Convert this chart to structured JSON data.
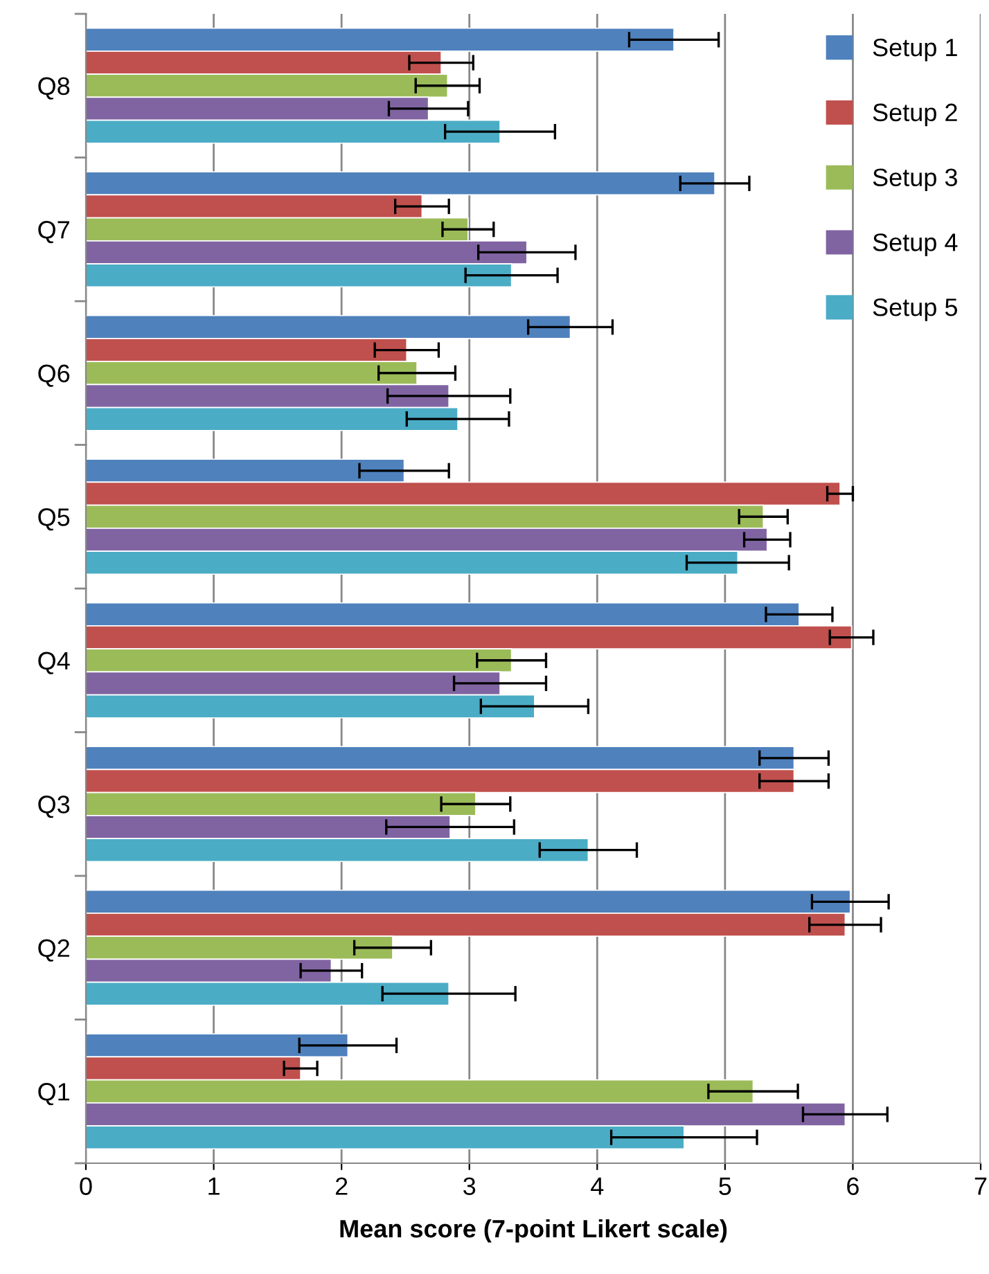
{
  "chart_data": {
    "type": "bar",
    "orientation": "horizontal",
    "xlabel": "Mean score (7-point Likert scale)",
    "categories": [
      "Q8",
      "Q7",
      "Q6",
      "Q5",
      "Q4",
      "Q3",
      "Q2",
      "Q1"
    ],
    "series": [
      {
        "name": "Setup 1",
        "color": "#4f81bd",
        "values": [
          4.6,
          4.92,
          3.79,
          2.49,
          5.58,
          5.54,
          5.98,
          2.05
        ],
        "errors": [
          0.35,
          0.27,
          0.33,
          0.35,
          0.26,
          0.27,
          0.3,
          0.38
        ]
      },
      {
        "name": "Setup 2",
        "color": "#c0504d",
        "values": [
          2.78,
          2.63,
          2.51,
          5.9,
          5.99,
          5.54,
          5.94,
          1.68
        ],
        "errors": [
          0.25,
          0.21,
          0.25,
          0.1,
          0.17,
          0.27,
          0.28,
          0.13
        ]
      },
      {
        "name": "Setup 3",
        "color": "#9bbb59",
        "values": [
          2.83,
          2.99,
          2.59,
          5.3,
          3.33,
          3.05,
          2.4,
          5.22
        ],
        "errors": [
          0.25,
          0.2,
          0.3,
          0.19,
          0.27,
          0.27,
          0.3,
          0.35
        ]
      },
      {
        "name": "Setup 4",
        "color": "#8064a2",
        "values": [
          2.68,
          3.45,
          2.84,
          5.33,
          3.24,
          2.85,
          1.92,
          5.94
        ],
        "errors": [
          0.31,
          0.38,
          0.48,
          0.18,
          0.36,
          0.5,
          0.24,
          0.33
        ]
      },
      {
        "name": "Setup 5",
        "color": "#4bacc6",
        "values": [
          3.24,
          3.33,
          2.91,
          5.1,
          3.51,
          3.93,
          2.84,
          4.68
        ],
        "errors": [
          0.43,
          0.36,
          0.4,
          0.4,
          0.42,
          0.38,
          0.52,
          0.57
        ]
      }
    ],
    "xlim": [
      0,
      7
    ],
    "xticks": [
      0,
      1,
      2,
      3,
      4,
      5,
      6,
      7
    ],
    "grid": "x",
    "legend": "top right"
  }
}
